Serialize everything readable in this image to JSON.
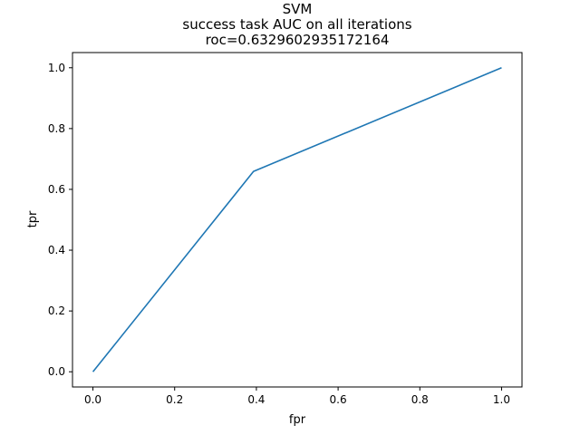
{
  "chart_data": {
    "type": "line",
    "title_lines": [
      "SVM",
      "success task AUC on all iterations",
      "roc=0.6329602935172164"
    ],
    "xlabel": "fpr",
    "ylabel": "tpr",
    "xlim": [
      -0.05,
      1.05
    ],
    "ylim": [
      -0.05,
      1.05
    ],
    "x_ticks": [
      "0.0",
      "0.2",
      "0.4",
      "0.6",
      "0.8",
      "1.0"
    ],
    "y_ticks": [
      "0.0",
      "0.2",
      "0.4",
      "0.6",
      "0.8",
      "1.0"
    ],
    "grid": false,
    "series": [
      {
        "color": "#1f77b4",
        "x": [
          0.0,
          0.393,
          1.0
        ],
        "y": [
          0.0,
          0.659,
          1.0
        ]
      }
    ]
  }
}
